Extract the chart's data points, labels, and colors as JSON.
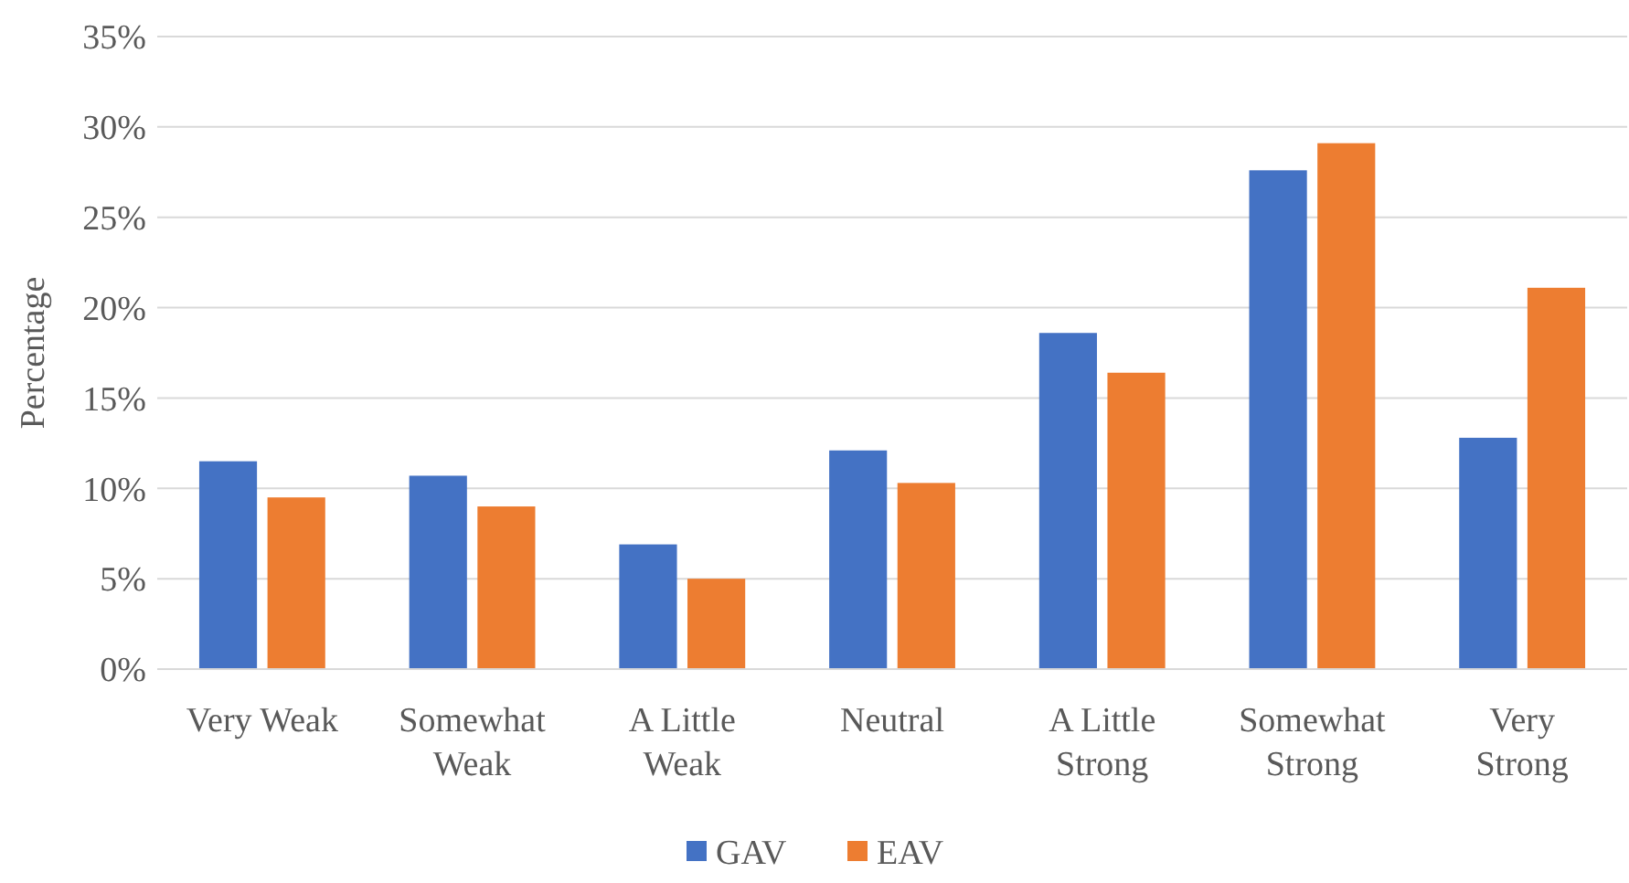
{
  "chart_data": {
    "type": "bar",
    "ylabel": "Percentage",
    "categories": [
      "Very Weak",
      "Somewhat Weak",
      "A Little Weak",
      "Neutral",
      "A Little Strong",
      "Somewhat Strong",
      "Very Strong"
    ],
    "series": [
      {
        "name": "GAV",
        "color": "#4472c4",
        "values": [
          11.5,
          10.7,
          6.9,
          12.1,
          18.6,
          27.6,
          12.8
        ]
      },
      {
        "name": "EAV",
        "color": "#ed7d31",
        "values": [
          9.5,
          9.0,
          5.0,
          10.3,
          16.4,
          29.1,
          21.1
        ]
      }
    ],
    "ylim": [
      0,
      35
    ],
    "yticks": [
      {
        "value": 0,
        "label": "0%"
      },
      {
        "value": 5,
        "label": "5%"
      },
      {
        "value": 10,
        "label": "10%"
      },
      {
        "value": 15,
        "label": "15%"
      },
      {
        "value": 20,
        "label": "20%"
      },
      {
        "value": 25,
        "label": "25%"
      },
      {
        "value": 30,
        "label": "30%"
      },
      {
        "value": 35,
        "label": "35%"
      }
    ],
    "grid": "y",
    "legend": "bottom"
  }
}
